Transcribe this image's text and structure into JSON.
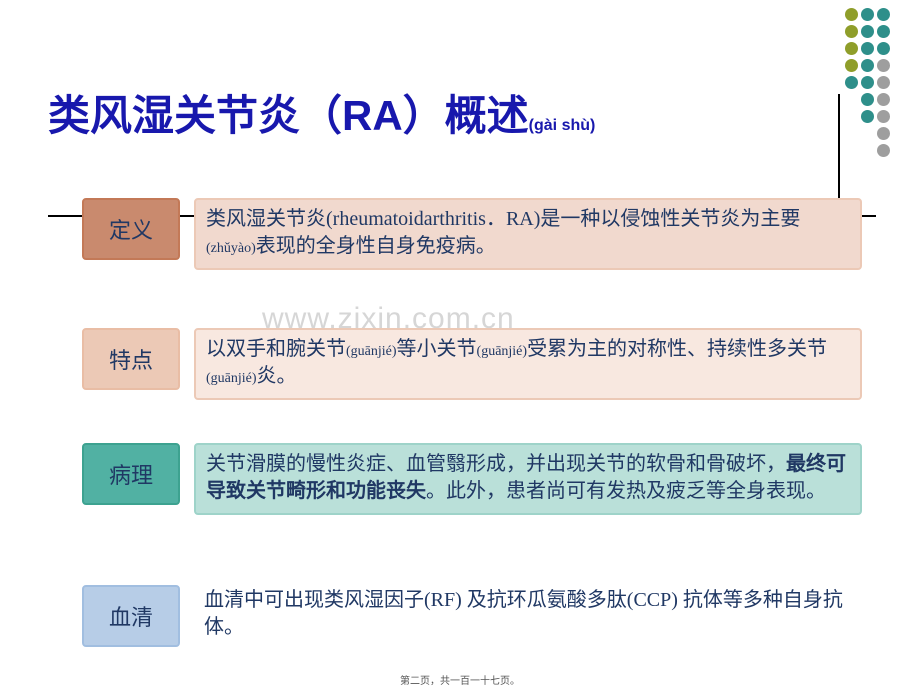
{
  "dots": {
    "colors": {
      "olive": "#8f9e2a",
      "teal": "#2e8f8a",
      "gray": "#9e9e9e"
    },
    "rows": [
      [
        "olive",
        "teal",
        "teal"
      ],
      [
        "olive",
        "teal",
        "teal"
      ],
      [
        "olive",
        "teal",
        "teal"
      ],
      [
        "olive",
        "teal",
        "gray"
      ],
      [
        "teal",
        "teal",
        "gray"
      ],
      [
        "teal",
        "gray"
      ],
      [
        "teal",
        "gray"
      ],
      [
        "gray"
      ],
      [
        "gray"
      ]
    ]
  },
  "title": {
    "main": "类风湿关节炎（RA）概述",
    "pinyin": "(gài shù)",
    "color": "#1818ad",
    "fontsize": 42
  },
  "watermark": "www.zixin.com.cn",
  "rows": [
    {
      "label": "定义",
      "content_html": "类风湿关节炎(rheumatoidarthritis．RA)是一种以侵蚀性关节炎为主要<span class='pinyin'>(zhǔyào)</span>表现的全身性自身免疫病。",
      "label_bg": "#c98a6e",
      "label_border": "#c37957",
      "content_bg": "#f1d9ce",
      "content_border": "#ecc9b6"
    },
    {
      "label": "特点",
      "content_html": "以双手和腕关节<span class='pinyin'>(guānjié)</span>等小关节<span class='pinyin'>(guānjié)</span>受累为主的对称性、持续性多关节<span class='pinyin'>(guānjié)</span>炎。",
      "label_bg": "#ecc9b6",
      "label_border": "#e9bda5",
      "content_bg": "#f8e8e0",
      "content_border": "#ecc9b6"
    },
    {
      "label": "病理",
      "content_html": "关节滑膜的慢性炎症、血管翳形成，并出现关节的软骨和骨破坏，<span class='bold'>最终可导致关节畸形和功能丧失</span>。此外，患者尚可有发热及疲乏等全身表现。",
      "label_bg": "#51b1a3",
      "label_border": "#3da290",
      "content_bg": "#bae0d9",
      "content_border": "#9ed3c9"
    },
    {
      "label": "血清",
      "content_html": "血清中可出现类风湿因子(RF) 及抗环瓜氨酸多肽(CCP) 抗体等多种自身抗体。",
      "label_bg": "#b7cde7",
      "label_border": "#a1bee0",
      "content_bg": "#ffffff",
      "content_border": "transparent"
    }
  ],
  "footer": "第二页，共一百一十七页。"
}
